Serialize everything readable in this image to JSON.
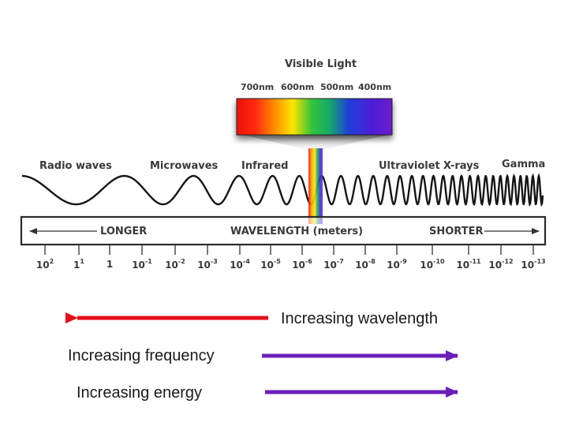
{
  "visible_light": {
    "title": "Visible Light",
    "nm_labels": [
      "700nm",
      "600nm",
      "500nm",
      "400nm"
    ]
  },
  "regions": {
    "radio": "Radio waves",
    "microwaves": "Microwaves",
    "infrared": "Infrared",
    "ultraviolet": "Ultraviolet",
    "xrays": "X-rays",
    "gamma": "Gamma"
  },
  "scale": {
    "longer": "LONGER",
    "center": "WAVELENGTH (meters)",
    "shorter": "SHORTER",
    "ticks": [
      {
        "base": "10",
        "exp": "2"
      },
      {
        "base": "1",
        "exp": "1"
      },
      {
        "base": "1",
        "exp": ""
      },
      {
        "base": "10",
        "exp": "-1"
      },
      {
        "base": "10",
        "exp": "-2"
      },
      {
        "base": "10",
        "exp": "-3"
      },
      {
        "base": "10",
        "exp": "-4"
      },
      {
        "base": "10",
        "exp": "-5"
      },
      {
        "base": "10",
        "exp": "-6"
      },
      {
        "base": "10",
        "exp": "-7"
      },
      {
        "base": "10",
        "exp": "-8"
      },
      {
        "base": "10",
        "exp": "-9"
      },
      {
        "base": "10",
        "exp": "-10"
      },
      {
        "base": "10",
        "exp": "-11"
      },
      {
        "base": "10",
        "exp": "-12"
      },
      {
        "base": "10",
        "exp": "-13"
      }
    ]
  },
  "captions": {
    "wavelength": "Increasing wavelength",
    "frequency": "Increasing frequency",
    "energy": "Increasing energy"
  },
  "colors": {
    "wavelength_arrow": "#e3101a",
    "frequency_arrow": "#6a1fb8",
    "energy_arrow": "#6a1fb8",
    "text": "#3a3a3a"
  }
}
